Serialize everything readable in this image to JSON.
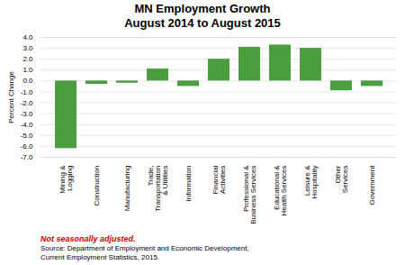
{
  "chart_data": {
    "type": "bar",
    "title": "MN Employment Growth\nAugust 2014 to August 2015",
    "ylabel": "Percent Change",
    "categories": [
      "Mining &\nLogging",
      "Construction",
      "Manufacturing",
      "Trade,\nTransportation\n& Utilities",
      "Information",
      "Financial\nActivities",
      "Professional &\nBusiness Services",
      "Educational &\nHealth Services",
      "Leisure &\nHospitality",
      "Other\nServices",
      "Government"
    ],
    "values": [
      -6.2,
      -0.3,
      -0.2,
      1.1,
      -0.5,
      2.0,
      3.1,
      3.3,
      3.0,
      -0.9,
      -0.5
    ],
    "color": "#4a9e3f",
    "ylim": [
      -7.0,
      4.0
    ],
    "yticks": [
      {
        "value": -7.0,
        "label": "-7.0"
      },
      {
        "value": -6.0,
        "label": "-6.0"
      },
      {
        "value": -5.0,
        "label": "-5.0"
      },
      {
        "value": -4.0,
        "label": "-4.0"
      },
      {
        "value": -3.0,
        "label": "-3.0"
      },
      {
        "value": -2.0,
        "label": "-2.0"
      },
      {
        "value": -1.0,
        "label": "-1.0"
      },
      {
        "value": 0.0,
        "label": "0.0"
      },
      {
        "value": 1.0,
        "label": "1.0"
      },
      {
        "value": 2.0,
        "label": "2.0"
      },
      {
        "value": 3.0,
        "label": "3.0"
      },
      {
        "value": 4.0,
        "label": "4.0"
      }
    ],
    "grid": true,
    "annotations": [
      {
        "text": "Not seasonally adjusted.",
        "color": "#cc0000"
      },
      {
        "text": "Source: Department of Employment and Economic Development,\nCurrent Employment Statistics, 2015."
      }
    ]
  }
}
